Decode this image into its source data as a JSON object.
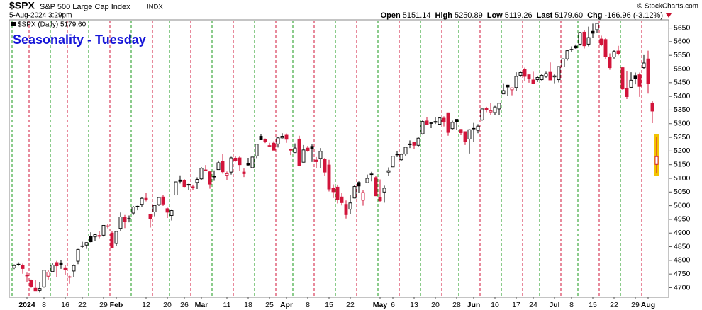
{
  "chart_data": {
    "type": "candlestick",
    "title": "Seasonality - Tuesday",
    "legend_label": "$SPX (Daily) 5179.60",
    "header": {
      "symbol": "$SPX",
      "name": "S&P 500 Large Cap Index",
      "exchange": "INDX",
      "timestamp": "5-Aug-2024 3:29pm",
      "quote": [
        [
          "Open",
          "5151.14"
        ],
        [
          "High",
          "5250.89"
        ],
        [
          "Low",
          "5119.26"
        ],
        [
          "Last",
          "5179.60"
        ],
        [
          "Chg",
          "-166.96 (-3.12%)"
        ]
      ],
      "copyright": "© StockCharts.com"
    },
    "ylim": [
      4665,
      5680
    ],
    "yticks": [
      4700,
      4750,
      4800,
      4850,
      4900,
      4950,
      5000,
      5050,
      5100,
      5150,
      5200,
      5250,
      5300,
      5350,
      5400,
      5450,
      5500,
      5550,
      5600,
      5650
    ],
    "categories": [
      null,
      null,
      null,
      "2024",
      null,
      null,
      null,
      "8",
      null,
      null,
      null,
      null,
      "16",
      null,
      null,
      null,
      "22",
      null,
      null,
      null,
      null,
      "29",
      null,
      null,
      "Feb",
      null,
      null,
      null,
      null,
      null,
      null,
      "12",
      null,
      null,
      null,
      null,
      "20",
      null,
      null,
      null,
      "26",
      null,
      null,
      null,
      "Mar",
      null,
      null,
      null,
      null,
      null,
      "11",
      null,
      null,
      null,
      null,
      "18",
      null,
      null,
      null,
      null,
      "25",
      null,
      null,
      null,
      "Apr",
      null,
      null,
      null,
      null,
      "8",
      null,
      null,
      null,
      null,
      "15",
      null,
      null,
      null,
      null,
      "22",
      null,
      null,
      null,
      null,
      null,
      null,
      "May",
      null,
      null,
      "6",
      null,
      null,
      null,
      null,
      "13",
      null,
      null,
      null,
      null,
      "20",
      null,
      null,
      null,
      null,
      "28",
      null,
      null,
      null,
      "Jun",
      null,
      null,
      null,
      null,
      "10",
      null,
      null,
      null,
      null,
      "17",
      null,
      null,
      null,
      "24",
      null,
      null,
      null,
      null,
      "Jul",
      null,
      null,
      null,
      "8",
      null,
      null,
      null,
      null,
      "15",
      null,
      null,
      null,
      null,
      "22",
      null,
      null,
      null,
      null,
      "29",
      null,
      null,
      "Aug",
      null,
      null
    ],
    "candles": [
      [
        4773,
        4785,
        4768,
        4781
      ],
      [
        4786,
        4793,
        4780,
        4783
      ],
      [
        4782,
        4788,
        4751,
        4770
      ],
      [
        4745,
        4755,
        4722,
        4743
      ],
      [
        4726,
        4730,
        4700,
        4705
      ],
      [
        4698,
        4727,
        4689,
        4689
      ],
      [
        4690,
        4722,
        4682,
        4697
      ],
      [
        4703,
        4764,
        4700,
        4764
      ],
      [
        4742,
        4765,
        4730,
        4757
      ],
      [
        4759,
        4790,
        4756,
        4783
      ],
      [
        4792,
        4798,
        4739,
        4780
      ],
      [
        4791,
        4802,
        4769,
        4784
      ],
      [
        4773,
        4783,
        4748,
        4766
      ],
      [
        4740,
        4744,
        4715,
        4739
      ],
      [
        4761,
        4785,
        4740,
        4781
      ],
      [
        4797,
        4842,
        4786,
        4840
      ],
      [
        4853,
        4868,
        4844,
        4851
      ],
      [
        4856,
        4866,
        4842,
        4865
      ],
      [
        4888,
        4903,
        4866,
        4868
      ],
      [
        4886,
        4898,
        4870,
        4894
      ],
      [
        4888,
        4907,
        4881,
        4891
      ],
      [
        4892,
        4929,
        4887,
        4928
      ],
      [
        4926,
        4932,
        4917,
        4925
      ],
      [
        4900,
        4906,
        4845,
        4846
      ],
      [
        4862,
        4906,
        4853,
        4906
      ],
      [
        4917,
        4975,
        4908,
        4959
      ],
      [
        4957,
        4966,
        4918,
        4943
      ],
      [
        4951,
        4964,
        4939,
        4954
      ],
      [
        4973,
        4999,
        4966,
        4995
      ],
      [
        4996,
        5000,
        4983,
        4998
      ],
      [
        5005,
        5031,
        4996,
        5027
      ],
      [
        5027,
        5048,
        5016,
        5022
      ],
      [
        4968,
        4970,
        4920,
        4953
      ],
      [
        4977,
        5002,
        4961,
        5001
      ],
      [
        5004,
        5032,
        4999,
        5030
      ],
      [
        5032,
        5039,
        4999,
        5006
      ],
      [
        4989,
        4993,
        4955,
        4976
      ],
      [
        4964,
        4984,
        4946,
        4982
      ],
      [
        5039,
        5088,
        5039,
        5087
      ],
      [
        5094,
        5111,
        5081,
        5089
      ],
      [
        5093,
        5097,
        5068,
        5070
      ],
      [
        5075,
        5080,
        5058,
        5078
      ],
      [
        5067,
        5077,
        5058,
        5069
      ],
      [
        5085,
        5104,
        5061,
        5096
      ],
      [
        5098,
        5141,
        5094,
        5137
      ],
      [
        5131,
        5149,
        5127,
        5131
      ],
      [
        5124,
        5127,
        5062,
        5079
      ],
      [
        5109,
        5129,
        5091,
        5105
      ],
      [
        5132,
        5165,
        5132,
        5157
      ],
      [
        5163,
        5189,
        5117,
        5124
      ],
      [
        5112,
        5125,
        5094,
        5117
      ],
      [
        5123,
        5179,
        5114,
        5175
      ],
      [
        5174,
        5180,
        5161,
        5165
      ],
      [
        5175,
        5180,
        5128,
        5150
      ],
      [
        5123,
        5136,
        5105,
        5117
      ],
      [
        5154,
        5175,
        5146,
        5149
      ],
      [
        5139,
        5179,
        5138,
        5178
      ],
      [
        5182,
        5225,
        5174,
        5225
      ],
      [
        5254,
        5261,
        5240,
        5241
      ],
      [
        5242,
        5246,
        5229,
        5234
      ],
      [
        5220,
        5230,
        5216,
        5218
      ],
      [
        5229,
        5236,
        5203,
        5203
      ],
      [
        5226,
        5250,
        5213,
        5248
      ],
      [
        5248,
        5265,
        5246,
        5254
      ],
      [
        5258,
        5264,
        5230,
        5243
      ],
      [
        5204,
        5209,
        5185,
        5205
      ],
      [
        5194,
        5228,
        5194,
        5211
      ],
      [
        5244,
        5256,
        5146,
        5147
      ],
      [
        5159,
        5222,
        5158,
        5204
      ],
      [
        5211,
        5219,
        5197,
        5202
      ],
      [
        5217,
        5224,
        5160,
        5209
      ],
      [
        5167,
        5178,
        5138,
        5161
      ],
      [
        5173,
        5211,
        5138,
        5199
      ],
      [
        5171,
        5175,
        5108,
        5123
      ],
      [
        5149,
        5168,
        5052,
        5061
      ],
      [
        5065,
        5078,
        5028,
        5051
      ],
      [
        5068,
        5077,
        5008,
        5022
      ],
      [
        5032,
        5046,
        5001,
        5011
      ],
      [
        5005,
        5019,
        4953,
        4967
      ],
      [
        4987,
        5039,
        4969,
        5010
      ],
      [
        5028,
        5076,
        5027,
        5070
      ],
      [
        5085,
        5089,
        5048,
        5072
      ],
      [
        5020,
        5058,
        5000,
        5048
      ],
      [
        5084,
        5114,
        5084,
        5100
      ],
      [
        5114,
        5124,
        5089,
        5116
      ],
      [
        5103,
        5110,
        5035,
        5036
      ],
      [
        5029,
        5096,
        5014,
        5018
      ],
      [
        5050,
        5073,
        5011,
        5064
      ],
      [
        5123,
        5140,
        5108,
        5128
      ],
      [
        5142,
        5181,
        5142,
        5181
      ],
      [
        5188,
        5200,
        5178,
        5187
      ],
      [
        5168,
        5191,
        5165,
        5188
      ],
      [
        5189,
        5215,
        5181,
        5214
      ],
      [
        5226,
        5239,
        5211,
        5223
      ],
      [
        5233,
        5234,
        5206,
        5221
      ],
      [
        5221,
        5250,
        5217,
        5247
      ],
      [
        5263,
        5312,
        5260,
        5308
      ],
      [
        5310,
        5325,
        5296,
        5297
      ],
      [
        5303,
        5305,
        5284,
        5303
      ],
      [
        5305,
        5325,
        5299,
        5308
      ],
      [
        5298,
        5324,
        5297,
        5321
      ],
      [
        5320,
        5327,
        5290,
        5307
      ],
      [
        5340,
        5341,
        5256,
        5268
      ],
      [
        5282,
        5311,
        5278,
        5305
      ],
      [
        5316,
        5316,
        5278,
        5306
      ],
      [
        5279,
        5281,
        5258,
        5267
      ],
      [
        5271,
        5272,
        5222,
        5235
      ],
      [
        5244,
        5280,
        5191,
        5278
      ],
      [
        5283,
        5303,
        5234,
        5283
      ],
      [
        5276,
        5298,
        5265,
        5291
      ],
      [
        5314,
        5354,
        5311,
        5354
      ],
      [
        5357,
        5362,
        5342,
        5352
      ],
      [
        5343,
        5376,
        5331,
        5347
      ],
      [
        5341,
        5365,
        5331,
        5361
      ],
      [
        5354,
        5376,
        5331,
        5375
      ],
      [
        5409,
        5448,
        5409,
        5421
      ],
      [
        5441,
        5442,
        5403,
        5434
      ],
      [
        5424,
        5432,
        5404,
        5431
      ],
      [
        5432,
        5488,
        5421,
        5473
      ],
      [
        5477,
        5490,
        5471,
        5487
      ],
      [
        5499,
        5505,
        5455,
        5473
      ],
      [
        5479,
        5479,
        5450,
        5464
      ],
      [
        5460,
        5490,
        5447,
        5447
      ],
      [
        5461,
        5473,
        5452,
        5469
      ],
      [
        5461,
        5483,
        5458,
        5477
      ],
      [
        5473,
        5490,
        5468,
        5483
      ],
      [
        5488,
        5524,
        5460,
        5460
      ],
      [
        5471,
        5480,
        5448,
        5475
      ],
      [
        5461,
        5510,
        5451,
        5509
      ],
      [
        5508,
        5539,
        5507,
        5537
      ],
      [
        5537,
        5570,
        5531,
        5567
      ],
      [
        5572,
        5583,
        5562,
        5572
      ],
      [
        5584,
        5590,
        5574,
        5577
      ],
      [
        5591,
        5636,
        5586,
        5633
      ],
      [
        5635,
        5642,
        5575,
        5585
      ],
      [
        5591,
        5655,
        5583,
        5615
      ],
      [
        5638,
        5666,
        5614,
        5631
      ],
      [
        5644,
        5668,
        5632,
        5667
      ],
      [
        5610,
        5622,
        5584,
        5589
      ],
      [
        5608,
        5615,
        5535,
        5545
      ],
      [
        5543,
        5557,
        5497,
        5505
      ],
      [
        5544,
        5570,
        5538,
        5564
      ],
      [
        5566,
        5585,
        5550,
        5556
      ],
      [
        5505,
        5509,
        5424,
        5427
      ],
      [
        5429,
        5492,
        5390,
        5399
      ],
      [
        5433,
        5488,
        5432,
        5459
      ],
      [
        5476,
        5487,
        5444,
        5464
      ],
      [
        5479,
        5487,
        5398,
        5436
      ],
      [
        5505,
        5551,
        5499,
        5522
      ],
      [
        5537,
        5567,
        5410,
        5446
      ],
      [
        5376,
        5383,
        5302,
        5346
      ],
      [
        5151.14,
        5250.89,
        5119.26,
        5179.6
      ]
    ],
    "up_color": "#000000",
    "down_color": "#d2143a",
    "highlight_color": "#f2c300"
  }
}
